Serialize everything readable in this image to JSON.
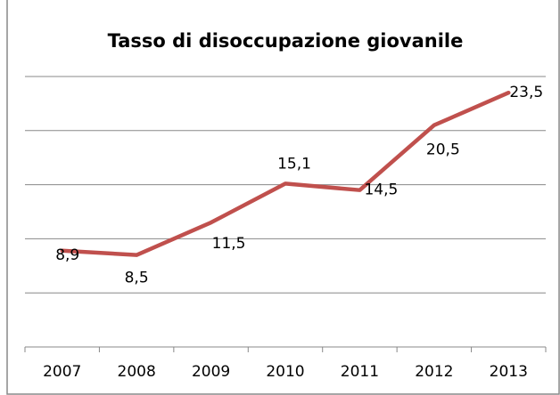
{
  "chart_data": {
    "type": "line",
    "title": "Tasso di disoccupazione giovanile",
    "categories": [
      "2007",
      "2008",
      "2009",
      "2010",
      "2011",
      "2012",
      "2013"
    ],
    "series": [
      {
        "color": "#c0504d",
        "values": [
          8.9,
          8.5,
          11.5,
          15.1,
          14.5,
          20.5,
          23.5
        ],
        "value_labels": [
          "8,9",
          "8,5",
          "11,5",
          "15,1",
          "14,5",
          "20,5",
          "23,5"
        ]
      }
    ],
    "ylim": [
      0,
      25
    ],
    "yticks": [
      0,
      5,
      10,
      15,
      20,
      25
    ],
    "grid": true
  }
}
